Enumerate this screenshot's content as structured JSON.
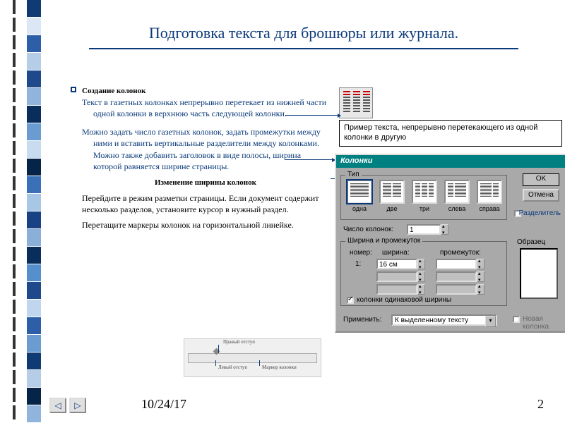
{
  "title": "Подготовка текста для брошюры или журнала.",
  "left": {
    "h1": "Создание колонок",
    "p1": "Текст в газетных колонках непрерывно перетекает из нижней части одной колонки в верхнюю часть следующей колонки.",
    "p2": "Можно задать число газетных колонок, задать промежутки между ними и вставить вертикальные разделители между колонками. Можно также добавить заголовок в виде полосы, ширина которой равняется ширине страницы.",
    "subhead": "Изменение ширины колонок",
    "p3": "Перейдите в режим разметки страницы. Если документ содержит несколько разделов, установите курсор в нужный раздел.",
    "p4": "Перетащите маркеры колонок на горизонтальной линейке."
  },
  "ruler": {
    "l1": "Правый отступ",
    "l2": "Левый отступ",
    "l3": "Маркер колонки"
  },
  "example_text": "Пример текста, непрерывно перетекающего из одной колонки в другую",
  "dialog": {
    "title": "Колонки",
    "group_type": "Тип",
    "presets": [
      "одна",
      "две",
      "три",
      "слева",
      "справа"
    ],
    "ok": "OK",
    "cancel": "Отмена",
    "sep_label": "Разделитель",
    "num_cols_label": "Число колонок:",
    "num_cols_val": "1",
    "group_width": "Ширина и промежуток",
    "col_num": "номер:",
    "col_w": "ширина:",
    "col_gap": "промежуток:",
    "row1_num": "1:",
    "row1_w": "16 см",
    "equal_label": "колонки одинаковой ширины",
    "sample_label": "Образец",
    "apply_label": "Применить:",
    "apply_val": "К выделенному тексту",
    "newcol_label": "Новая колонка"
  },
  "footer": {
    "date": "10/24/17",
    "page": "2"
  },
  "colors": {
    "title": "#0b3a7a",
    "dialog_bg": "#a9a9a9",
    "titlebar": "#008080",
    "spiral": [
      "#0f3a73",
      "#dbe7f5",
      "#2d5fa8",
      "#b6cde8",
      "#1e4a8c",
      "#90b4db",
      "#0a2e5c",
      "#6a9bd1",
      "#c9dcef",
      "#062448",
      "#3a70b8",
      "#a8c6e6",
      "#184284",
      "#8ab0da",
      "#0a2e5c",
      "#5590cc",
      "#1e4a8c",
      "#c0d6ee",
      "#2d5fa8",
      "#6a9bd1",
      "#0f3a73",
      "#b6cde8",
      "#062448",
      "#90b4db"
    ]
  }
}
